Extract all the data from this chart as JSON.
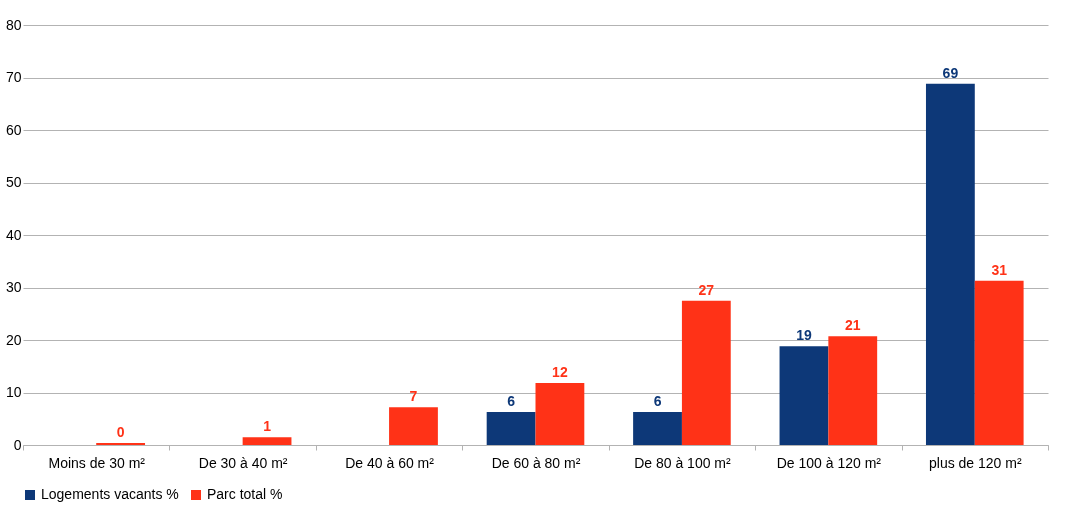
{
  "chart_data": {
    "type": "bar",
    "categories": [
      "Moins de 30 m²",
      "De 30 à 40 m²",
      "De 40 à 60 m²",
      "De 60 à 80 m²",
      "De 80 à 100 m²",
      "De 100 à 120 m²",
      "plus de 120 m²"
    ],
    "series": [
      {
        "name": "Logements vacants %",
        "color": "#0d3878",
        "values": [
          null,
          null,
          null,
          6.3,
          6.3,
          18.8,
          68.8
        ],
        "value_labels": [
          null,
          null,
          null,
          "6",
          "6",
          "19",
          "69"
        ]
      },
      {
        "name": "Parc total %",
        "color": "#ff3217",
        "values": [
          0.4,
          1.5,
          7.2,
          11.8,
          27.5,
          20.7,
          31.3
        ],
        "value_labels": [
          "0",
          "1",
          "7",
          "12",
          "27",
          "21",
          "31"
        ]
      }
    ],
    "ylim": [
      0,
      80
    ],
    "yticks": [
      0,
      10,
      20,
      30,
      40,
      50,
      60,
      70,
      80
    ],
    "grid": "y",
    "legend": "bottom"
  }
}
